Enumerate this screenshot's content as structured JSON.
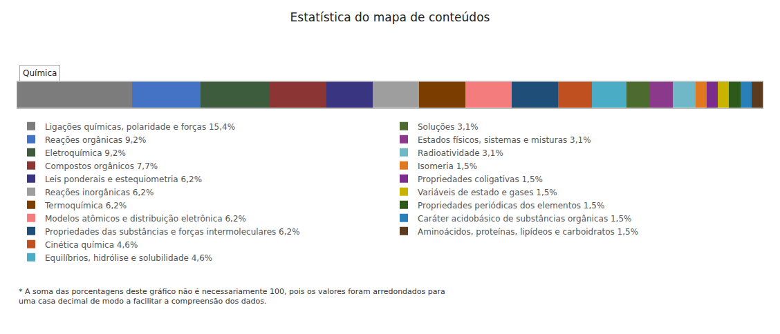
{
  "chart_data": {
    "type": "bar",
    "orientation": "horizontal",
    "stacked": true,
    "title": "Estatística do mapa de conteúdos",
    "annotations": [
      "Química",
      "* A soma das porcentagens deste gráfico não é necessariamente 100, pois os valores foram arredondados para\numa casa decimal de modo a facilitar a compreensão dos dados."
    ],
    "categories": [
      null
    ],
    "series": [
      {
        "name": "Ligações químicas, polaridade e forças 15,4%",
        "color": "#7c7c7c",
        "values": [
          15.4
        ]
      },
      {
        "name": "Reações orgânicas 9,2%",
        "color": "#4472c4",
        "values": [
          9.2
        ]
      },
      {
        "name": "Eletroquímica 9,2%",
        "color": "#3d5c3e",
        "values": [
          9.2
        ]
      },
      {
        "name": "Compostos orgânicos 7,7%",
        "color": "#8b3535",
        "values": [
          7.7
        ]
      },
      {
        "name": "Leis ponderais e estequiometria 6,2%",
        "color": "#3a3580",
        "values": [
          6.2
        ]
      },
      {
        "name": "Reações inorgânicas 6,2%",
        "color": "#9e9e9e",
        "values": [
          6.2
        ]
      },
      {
        "name": "Termoquímica 6,2%",
        "color": "#7b3e00",
        "values": [
          6.2
        ]
      },
      {
        "name": "Modelos atômicos e distribuição eletrônica 6,2%",
        "color": "#f47c7c",
        "values": [
          6.2
        ]
      },
      {
        "name": "Propriedades das substâncias e forças intermoleculares 6,2%",
        "color": "#1f4e79",
        "values": [
          6.2
        ]
      },
      {
        "name": "Cinética química 4,6%",
        "color": "#c05020",
        "values": [
          4.6
        ]
      },
      {
        "name": "Equilíbrios, hidrólise e solubilidade 4,6%",
        "color": "#4bacc6",
        "values": [
          4.6
        ]
      },
      {
        "name": "Soluções 3,1%",
        "color": "#4e6b2f",
        "values": [
          3.1
        ]
      },
      {
        "name": "Estados físicos, sistemas e misturas 3,1%",
        "color": "#8b3a8b",
        "values": [
          3.1
        ]
      },
      {
        "name": "Radioatividade 3,1%",
        "color": "#70b8c8",
        "values": [
          3.1
        ]
      },
      {
        "name": "Isomeria 1,5%",
        "color": "#e07820",
        "values": [
          1.5
        ]
      },
      {
        "name": "Propriedades coligativas 1,5%",
        "color": "#7b2d8b",
        "values": [
          1.5
        ]
      },
      {
        "name": "Variáveis de estado e gases 1,5%",
        "color": "#c8b400",
        "values": [
          1.5
        ]
      },
      {
        "name": "Propriedades periódicas dos elementos 1,5%",
        "color": "#2d5a1b",
        "values": [
          1.5
        ]
      },
      {
        "name": "Caráter acidobásico de substâncias orgânicas 1,5%",
        "color": "#2980b9",
        "values": [
          1.5
        ]
      },
      {
        "name": "Aminoácidos, proteínas, lipídeos e carboidratos 1,5%",
        "color": "#5c3a1e",
        "values": [
          1.5
        ]
      }
    ],
    "xlim": [
      0,
      100
    ],
    "tick_labels": false,
    "grid": false,
    "legend": "bottom"
  }
}
